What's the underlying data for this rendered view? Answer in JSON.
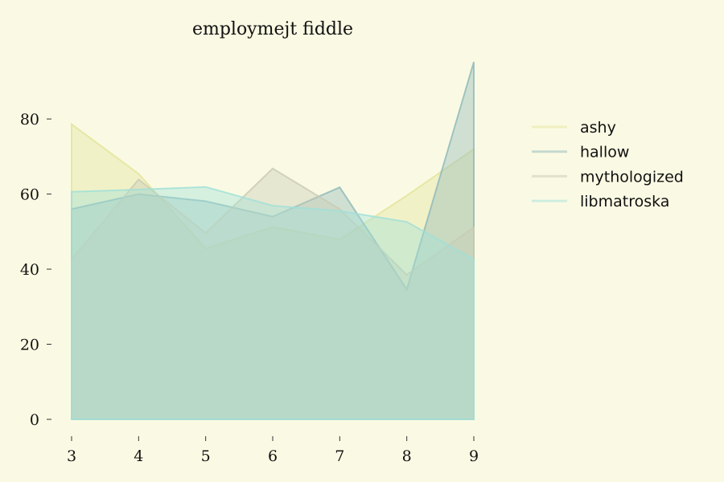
{
  "chart_data": {
    "type": "area",
    "title": "employmejt fiddle",
    "xlabel": "",
    "ylabel": "",
    "x": [
      3,
      4,
      5,
      6,
      7,
      8,
      9
    ],
    "xlim": [
      3,
      9
    ],
    "ylim": [
      0,
      95
    ],
    "yticks": [
      0,
      20,
      40,
      60,
      80
    ],
    "xticks": [
      3,
      4,
      5,
      6,
      7,
      8,
      9
    ],
    "grid": false,
    "legend": "right",
    "series": [
      {
        "name": "ashy",
        "color": "#e4e39a",
        "values": [
          78.6,
          65.4,
          45.5,
          51.2,
          47.9,
          59.6,
          72.0
        ]
      },
      {
        "name": "hallow",
        "color": "#8fb8b9",
        "values": [
          56.0,
          60.0,
          58.1,
          54.0,
          61.8,
          34.6,
          95.2
        ]
      },
      {
        "name": "mythologized",
        "color": "#c9cab3",
        "values": [
          42.6,
          63.9,
          49.6,
          66.8,
          56.0,
          38.5,
          51.1
        ]
      },
      {
        "name": "libmatroska",
        "color": "#9fe0d8",
        "values": [
          60.6,
          61.2,
          61.9,
          56.9,
          55.5,
          52.6,
          42.6
        ]
      }
    ]
  }
}
